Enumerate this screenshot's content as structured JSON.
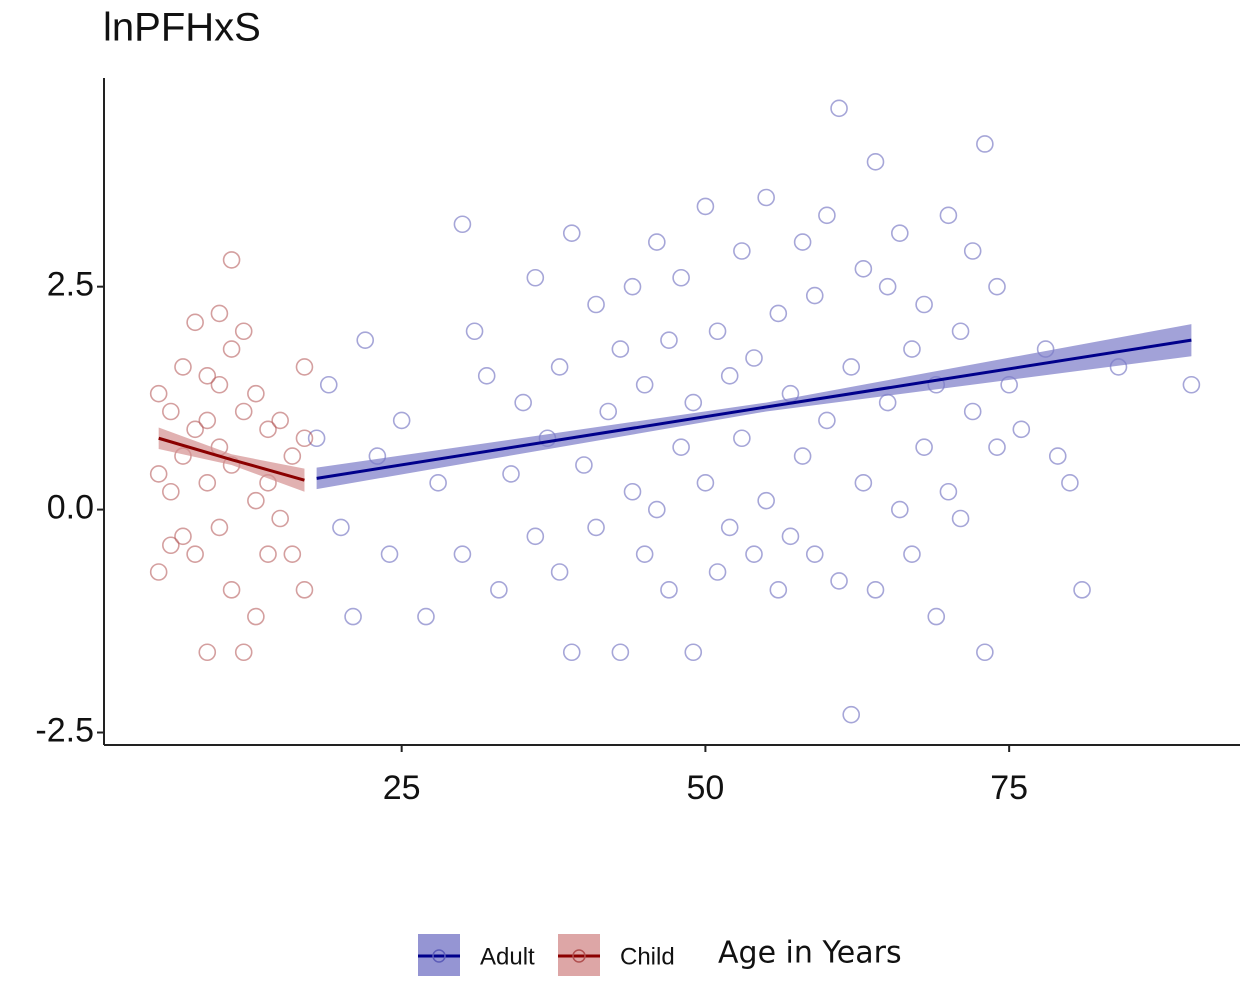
{
  "chart_data": {
    "type": "scatter",
    "title": "lnPFHxS",
    "x_label": "Age in Years",
    "xlim": [
      0.5,
      94
    ],
    "ylim": [
      -2.64,
      4.84
    ],
    "xticks": [
      25,
      50,
      75
    ],
    "yticks": [
      {
        "value": -2.5,
        "label": "-2.5"
      },
      {
        "value": 0,
        "label": "0.0"
      },
      {
        "value": 2.5,
        "label": "2.5"
      }
    ],
    "grid": false,
    "series": [
      {
        "name": "Adult",
        "color": "#5c5cb8",
        "line_color": "#00008b",
        "band_color": "#7b7bc8",
        "x": [
          18,
          19,
          20,
          21,
          22,
          23,
          24,
          25,
          27,
          28,
          30,
          30,
          31,
          32,
          33,
          34,
          35,
          36,
          36,
          37,
          38,
          38,
          39,
          39,
          40,
          41,
          41,
          42,
          43,
          43,
          44,
          44,
          45,
          45,
          46,
          46,
          47,
          47,
          48,
          48,
          49,
          49,
          50,
          50,
          51,
          51,
          52,
          52,
          53,
          53,
          54,
          54,
          55,
          55,
          56,
          56,
          57,
          57,
          58,
          58,
          59,
          59,
          60,
          60,
          61,
          61,
          62,
          62,
          63,
          63,
          64,
          64,
          65,
          65,
          66,
          66,
          67,
          67,
          68,
          68,
          69,
          69,
          70,
          70,
          71,
          71,
          72,
          72,
          73,
          73,
          74,
          74,
          75,
          76,
          78,
          79,
          80,
          81,
          84,
          90
        ],
        "values": [
          0.8,
          1.4,
          -0.2,
          -1.2,
          1.9,
          0.6,
          -0.5,
          1.0,
          -1.2,
          0.3,
          3.2,
          -0.5,
          2.0,
          1.5,
          -0.9,
          0.4,
          1.2,
          2.6,
          -0.3,
          0.8,
          1.6,
          -0.7,
          3.1,
          -1.6,
          0.5,
          2.3,
          -0.2,
          1.1,
          -1.6,
          1.8,
          0.2,
          2.5,
          -0.5,
          1.4,
          3.0,
          0.0,
          -0.9,
          1.9,
          0.7,
          2.6,
          -1.6,
          1.2,
          3.4,
          0.3,
          -0.7,
          2.0,
          1.5,
          -0.2,
          2.9,
          0.8,
          -0.5,
          1.7,
          3.5,
          0.1,
          -0.9,
          2.2,
          1.3,
          -0.3,
          3.0,
          0.6,
          -0.5,
          2.4,
          1.0,
          3.3,
          4.5,
          -0.8,
          -2.3,
          1.6,
          2.7,
          0.3,
          3.9,
          -0.9,
          1.2,
          2.5,
          0.0,
          3.1,
          -0.5,
          1.8,
          0.7,
          2.3,
          -1.2,
          1.4,
          3.3,
          0.2,
          -0.1,
          2.0,
          1.1,
          2.9,
          4.1,
          -1.6,
          0.7,
          2.5,
          1.4,
          0.9,
          1.8,
          0.6,
          0.3,
          -0.9,
          1.6,
          1.4
        ],
        "fit_x": [
          18,
          55,
          90
        ],
        "fit_y": [
          0.35,
          1.15,
          1.9
        ],
        "band_lower": [
          0.23,
          1.1,
          1.72
        ],
        "band_upper": [
          0.47,
          1.2,
          2.08
        ]
      },
      {
        "name": "Child",
        "color": "#b05050",
        "line_color": "#8b0000",
        "band_color": "#d49090",
        "x": [
          5,
          5,
          5,
          6,
          6,
          6,
          7,
          7,
          7,
          8,
          8,
          8,
          9,
          9,
          9,
          9,
          10,
          10,
          10,
          10,
          11,
          11,
          11,
          11,
          12,
          12,
          12,
          13,
          13,
          13,
          14,
          14,
          14,
          15,
          15,
          16,
          16,
          17,
          17,
          17
        ],
        "values": [
          1.3,
          0.4,
          -0.7,
          1.1,
          0.2,
          -0.4,
          1.6,
          0.6,
          -0.3,
          2.1,
          0.9,
          -0.5,
          1.5,
          0.3,
          -1.6,
          1.0,
          2.2,
          1.4,
          0.7,
          -0.2,
          2.8,
          1.8,
          0.5,
          -0.9,
          2.0,
          1.1,
          -1.6,
          1.3,
          0.1,
          -1.2,
          0.9,
          0.3,
          -0.5,
          1.0,
          -0.1,
          0.6,
          -0.5,
          1.6,
          0.8,
          -0.9
        ],
        "fit_x": [
          5,
          11,
          17
        ],
        "fit_y": [
          0.8,
          0.56,
          0.33
        ],
        "band_lower": [
          0.68,
          0.5,
          0.2
        ],
        "band_upper": [
          0.92,
          0.62,
          0.46
        ]
      }
    ]
  }
}
